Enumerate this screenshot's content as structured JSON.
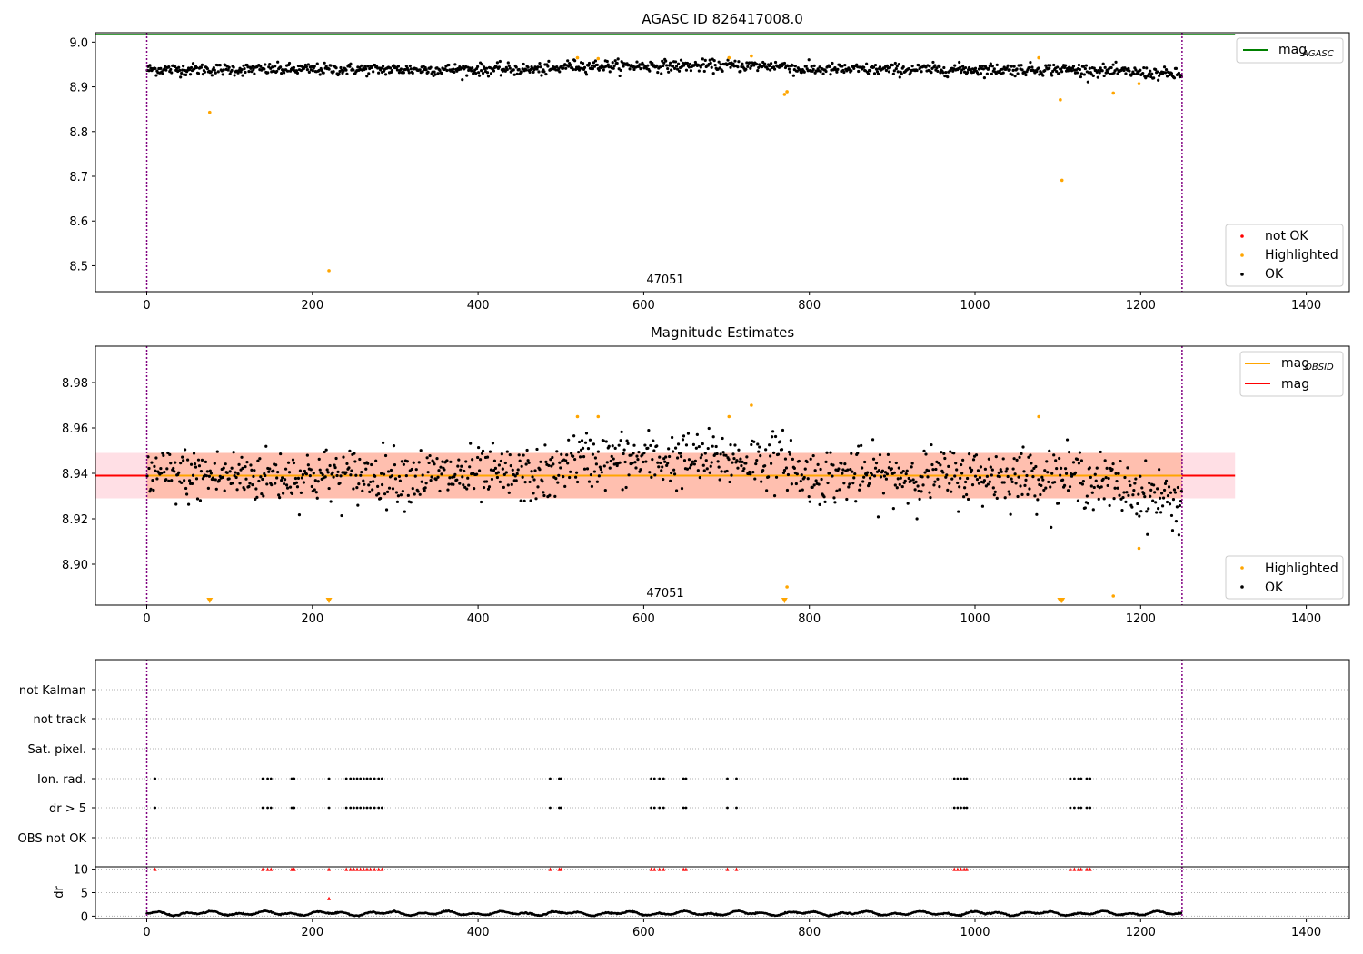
{
  "chart_data": [
    {
      "type": "scatter",
      "title": "AGASC ID 826417008.0",
      "xlim": [
        -62,
        1452
      ],
      "ylim": [
        8.442,
        9.021
      ],
      "xticks": [
        0,
        200,
        400,
        600,
        800,
        1000,
        1200,
        1400
      ],
      "yticks": [
        8.5,
        8.6,
        8.7,
        8.8,
        8.9,
        9.0
      ],
      "ytick_labels": [
        "8.5",
        "8.6",
        "8.7",
        "8.8",
        "8.9",
        "9.0"
      ],
      "obs_bounds": [
        0,
        1250
      ],
      "obsid_label": "47051",
      "obsid_label_x": 625,
      "grid": false,
      "legend_upper": {
        "position": "top-right",
        "entries": [
          {
            "label": "mag",
            "sub": "AGASC",
            "color": "#008000",
            "marker": "line"
          }
        ]
      },
      "legend_lower": {
        "position": "bottom-right",
        "entries": [
          {
            "label": "not OK",
            "color": "#ff0000",
            "marker": "dot"
          },
          {
            "label": "Highlighted",
            "color": "#ffa500",
            "marker": "dot"
          },
          {
            "label": "OK",
            "color": "#000000",
            "marker": "dot"
          }
        ]
      },
      "series": [
        {
          "name": "mag AGASC",
          "kind": "hline",
          "y": 9.017,
          "x_range": [
            -62,
            1314
          ],
          "color": "#008000"
        },
        {
          "name": "OK",
          "kind": "band",
          "x_range": [
            0,
            1250
          ],
          "center": 8.939,
          "spread": 0.012,
          "color": "#000000"
        },
        {
          "name": "Highlighted",
          "color": "#ffa500",
          "points": [
            {
              "x": 76,
              "y": 8.843
            },
            {
              "x": 220,
              "y": 8.489
            },
            {
              "x": 520,
              "y": 8.965
            },
            {
              "x": 545,
              "y": 8.963
            },
            {
              "x": 703,
              "y": 8.965
            },
            {
              "x": 730,
              "y": 8.969
            },
            {
              "x": 770,
              "y": 8.883
            },
            {
              "x": 773,
              "y": 8.889
            },
            {
              "x": 1077,
              "y": 8.965
            },
            {
              "x": 1103,
              "y": 8.871
            },
            {
              "x": 1105,
              "y": 8.691
            },
            {
              "x": 1167,
              "y": 8.886
            },
            {
              "x": 1198,
              "y": 8.907
            }
          ]
        }
      ]
    },
    {
      "type": "scatter",
      "title": "Magnitude Estimates",
      "xlim": [
        -62,
        1452
      ],
      "ylim": [
        8.882,
        8.996
      ],
      "xticks": [
        0,
        200,
        400,
        600,
        800,
        1000,
        1200,
        1400
      ],
      "yticks": [
        8.9,
        8.92,
        8.94,
        8.96,
        8.98
      ],
      "ytick_labels": [
        "8.90",
        "8.92",
        "8.94",
        "8.96",
        "8.98"
      ],
      "obs_bounds": [
        0,
        1250
      ],
      "obsid_label": "47051",
      "obsid_label_x": 625,
      "grid": false,
      "legend_upper": {
        "position": "top-right",
        "entries": [
          {
            "label": "mag",
            "sub": "OBSID",
            "color": "#ffa500",
            "marker": "line"
          },
          {
            "label": "mag",
            "sub": "",
            "color": "#ff0000",
            "marker": "line"
          }
        ]
      },
      "legend_lower": {
        "position": "bottom-right",
        "entries": [
          {
            "label": "Highlighted",
            "color": "#ffa500",
            "marker": "dot"
          },
          {
            "label": "OK",
            "color": "#000000",
            "marker": "dot"
          }
        ]
      },
      "series": [
        {
          "name": "mag",
          "kind": "hline",
          "y": 8.939,
          "x_range": [
            -62,
            1314
          ],
          "color": "#ff0000"
        },
        {
          "name": "mag band",
          "kind": "span",
          "y_range": [
            8.929,
            8.949
          ],
          "x_range": [
            -62,
            1314
          ],
          "color": "#ffc0cb"
        },
        {
          "name": "mag OBSID",
          "kind": "hline",
          "y": 8.939,
          "x_range": [
            0,
            1250
          ],
          "color": "#ffa500"
        },
        {
          "name": "mag OBSID band",
          "kind": "span",
          "y_range": [
            8.929,
            8.949
          ],
          "x_range": [
            0,
            1250
          ],
          "color": "#ffa07a"
        },
        {
          "name": "OK",
          "kind": "band",
          "x_range": [
            0,
            1250
          ],
          "center": 8.939,
          "spread": 0.011,
          "color": "#000000"
        },
        {
          "name": "Highlighted",
          "color": "#ffa500",
          "points": [
            {
              "x": 520,
              "y": 8.965
            },
            {
              "x": 545,
              "y": 8.965
            },
            {
              "x": 703,
              "y": 8.965
            },
            {
              "x": 730,
              "y": 8.97
            },
            {
              "x": 773,
              "y": 8.89
            },
            {
              "x": 1077,
              "y": 8.965
            },
            {
              "x": 1167,
              "y": 8.886
            },
            {
              "x": 1198,
              "y": 8.907
            }
          ]
        },
        {
          "name": "Highlighted (below range)",
          "kind": "down_markers",
          "color": "#ffa500",
          "x": [
            76,
            220,
            770,
            1103,
            1105
          ]
        }
      ]
    },
    {
      "type": "scatter",
      "title": "",
      "xlim": [
        -62,
        1452
      ],
      "categories": [
        "not Kalman",
        "not track",
        "Sat. pixel.",
        "Ion. rad.",
        "dr > 5",
        "OBS not OK"
      ],
      "obs_bounds": [
        0,
        1250
      ],
      "grid": true,
      "series": [
        {
          "name": "Ion. rad.",
          "color": "#000000",
          "x": [
            10,
            140,
            146,
            150,
            175,
            177,
            178,
            220,
            241,
            246,
            250,
            254,
            258,
            262,
            266,
            270,
            275,
            280,
            284,
            487,
            498,
            500,
            609,
            613,
            619,
            624,
            648,
            651,
            701,
            712,
            975,
            979,
            983,
            987,
            990,
            1115,
            1120,
            1125,
            1128,
            1135,
            1139
          ]
        },
        {
          "name": "dr > 5",
          "color": "#000000",
          "x": [
            10,
            140,
            146,
            150,
            175,
            177,
            178,
            220,
            241,
            246,
            250,
            254,
            258,
            262,
            266,
            270,
            275,
            280,
            284,
            487,
            498,
            500,
            609,
            613,
            619,
            624,
            648,
            651,
            701,
            712,
            975,
            979,
            983,
            987,
            990,
            1115,
            1120,
            1125,
            1128,
            1135,
            1139
          ]
        }
      ]
    },
    {
      "type": "line",
      "title": "",
      "xlim": [
        -62,
        1452
      ],
      "ylim": [
        -0.5,
        10.5
      ],
      "ylabel": "dr",
      "yticks": [
        0,
        5,
        10
      ],
      "grid": true,
      "obs_bounds": [
        0,
        1250
      ],
      "series": [
        {
          "name": "dr",
          "color": "#000000",
          "kind": "wave",
          "x_range": [
            0,
            1250
          ],
          "base": 0.6,
          "amp": 0.5
        },
        {
          "name": "dr > 5",
          "color": "#ff0000",
          "kind": "markers_up",
          "y": 10,
          "x": [
            10,
            140,
            146,
            150,
            175,
            177,
            178,
            220,
            241,
            246,
            250,
            254,
            258,
            262,
            266,
            270,
            275,
            280,
            284,
            487,
            498,
            500,
            609,
            613,
            619,
            624,
            648,
            651,
            701,
            712,
            975,
            979,
            983,
            987,
            990,
            1115,
            1120,
            1125,
            1128,
            1135,
            1139
          ]
        },
        {
          "name": "dr outlier",
          "color": "#ff0000",
          "kind": "markers_up",
          "y": 3.8,
          "x": [
            220
          ]
        }
      ]
    }
  ]
}
